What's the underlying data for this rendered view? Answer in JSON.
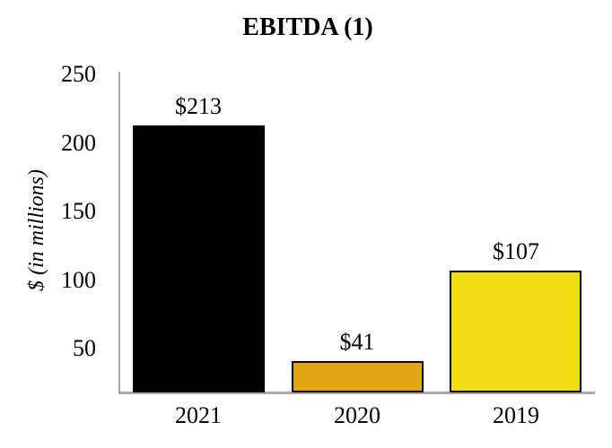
{
  "chart_data": {
    "type": "bar",
    "title": "EBITDA (1)",
    "ylabel": "$ (in millions)",
    "xlabel": "",
    "categories": [
      "2021",
      "2020",
      "2019"
    ],
    "values": [
      213,
      41,
      107
    ],
    "bar_labels": [
      "$213",
      "$41",
      "$107"
    ],
    "bar_colors": [
      "#000000",
      "#E2A614",
      "#EFDE14"
    ],
    "bar_border_color": "#000000",
    "axis_line_color": "#A9A9A9",
    "text_color": "#000000",
    "background_color": "#FFFFFF",
    "yticks": [
      50,
      100,
      150,
      200,
      250
    ],
    "ylim": [
      18,
      252
    ],
    "grid": false,
    "legend": false
  }
}
